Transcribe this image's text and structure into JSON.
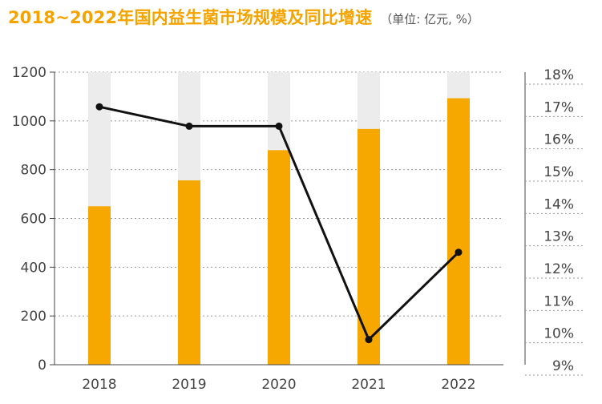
{
  "title": "2018~2022年国内益生菌市场规模及同比增速",
  "unit": "（单位: 亿元, %）",
  "colors": {
    "bar": "#F7A800",
    "bar_bg": "#ECECEC",
    "line": "#111111",
    "title": "#F5A300"
  },
  "chart_data": {
    "type": "bar+line",
    "categories": [
      "2018",
      "2019",
      "2020",
      "2021",
      "2022"
    ],
    "series": [
      {
        "type": "bar",
        "axis": "left",
        "values": [
          650,
          756,
          880,
          967,
          1093
        ]
      },
      {
        "type": "line",
        "axis": "right",
        "values": [
          17.3,
          16.7,
          16.7,
          10.1,
          12.8
        ]
      }
    ],
    "left_axis": {
      "ylim": [
        0,
        1200
      ],
      "ticks": [
        "0",
        "200",
        "400",
        "600",
        "800",
        "1000",
        "1200"
      ]
    },
    "right_axis": {
      "ylim": [
        9,
        18
      ],
      "ticks": [
        "9%",
        "10%",
        "11%",
        "12%",
        "13%",
        "14%",
        "15%",
        "16%",
        "17%",
        "18%"
      ]
    },
    "grid": true,
    "legend": "none"
  }
}
